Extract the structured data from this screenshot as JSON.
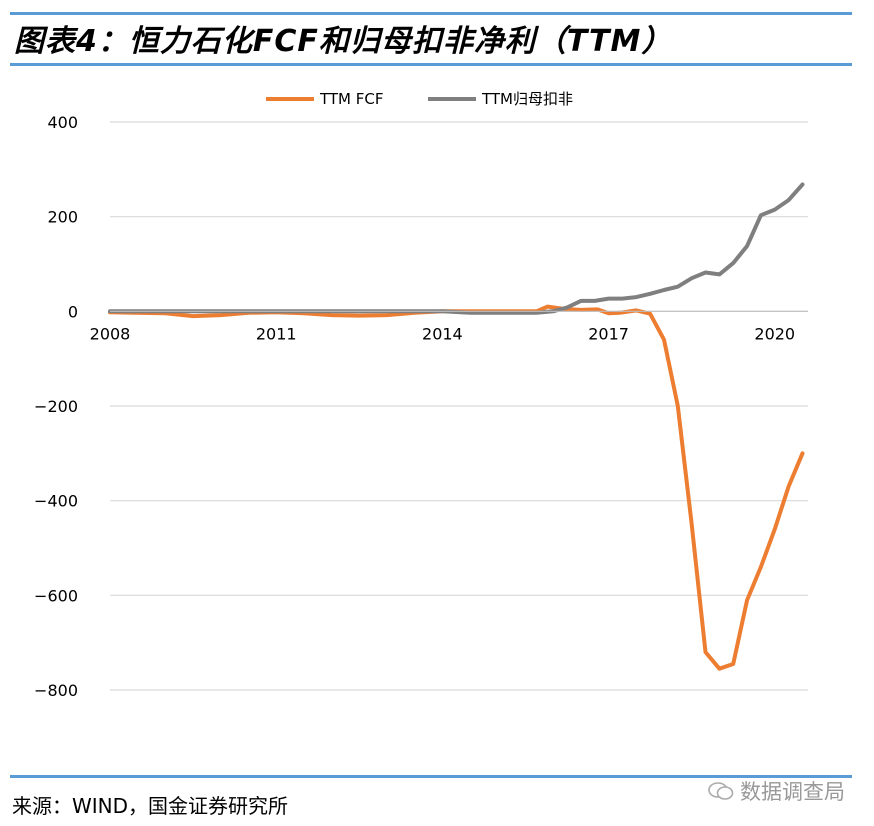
{
  "header": {
    "title": "图表4：恒力石化FCF和归母扣非净利（TTM）"
  },
  "footer": {
    "source": "来源：WIND，国金证券研究所",
    "watermark": "数据调查局"
  },
  "chart_data": {
    "type": "line",
    "ylim": [
      -800,
      400
    ],
    "yticks": [
      400,
      200,
      0,
      -200,
      -400,
      -600,
      -800
    ],
    "yticklabels": [
      "400",
      "200",
      "0",
      "−200",
      "−400",
      "−600",
      "−800"
    ],
    "xlim": [
      2008,
      2020.6
    ],
    "xticks": [
      2008,
      2011,
      2014,
      2017,
      2020
    ],
    "xticklabels": [
      "2008",
      "2011",
      "2014",
      "2017",
      "2020"
    ],
    "grid": true,
    "legend": "top",
    "colors": {
      "fcf": "#ed7d31",
      "profit": "#7f7f7f"
    },
    "series": [
      {
        "name": "TTM FCF",
        "color": "#ed7d31",
        "points": [
          [
            2008.0,
            -2
          ],
          [
            2009.0,
            -4
          ],
          [
            2009.5,
            -10
          ],
          [
            2010.0,
            -8
          ],
          [
            2010.5,
            -3
          ],
          [
            2011.0,
            -2
          ],
          [
            2011.5,
            -4
          ],
          [
            2012.0,
            -8
          ],
          [
            2012.5,
            -9
          ],
          [
            2013.0,
            -8
          ],
          [
            2013.5,
            -3
          ],
          [
            2014.0,
            0
          ],
          [
            2014.5,
            0
          ],
          [
            2015.0,
            0
          ],
          [
            2015.7,
            0
          ],
          [
            2015.9,
            10
          ],
          [
            2016.2,
            5
          ],
          [
            2016.5,
            3
          ],
          [
            2016.8,
            4
          ],
          [
            2017.0,
            -4
          ],
          [
            2017.2,
            -3
          ],
          [
            2017.5,
            2
          ],
          [
            2017.75,
            -5
          ],
          [
            2018.0,
            -60
          ],
          [
            2018.25,
            -200
          ],
          [
            2018.5,
            -450
          ],
          [
            2018.75,
            -720
          ],
          [
            2019.0,
            -755
          ],
          [
            2019.25,
            -745
          ],
          [
            2019.5,
            -610
          ],
          [
            2019.75,
            -540
          ],
          [
            2020.0,
            -460
          ],
          [
            2020.25,
            -370
          ],
          [
            2020.5,
            -300
          ]
        ]
      },
      {
        "name": "TTM归母扣非",
        "color": "#7f7f7f",
        "points": [
          [
            2008.0,
            0
          ],
          [
            2009.0,
            0
          ],
          [
            2010.0,
            0
          ],
          [
            2011.0,
            0
          ],
          [
            2012.0,
            0
          ],
          [
            2013.0,
            0
          ],
          [
            2014.0,
            0
          ],
          [
            2014.5,
            -3
          ],
          [
            2015.0,
            -3
          ],
          [
            2015.7,
            -3
          ],
          [
            2016.0,
            0
          ],
          [
            2016.25,
            8
          ],
          [
            2016.5,
            22
          ],
          [
            2016.75,
            22
          ],
          [
            2017.0,
            27
          ],
          [
            2017.25,
            27
          ],
          [
            2017.5,
            30
          ],
          [
            2017.75,
            37
          ],
          [
            2018.0,
            45
          ],
          [
            2018.25,
            52
          ],
          [
            2018.5,
            70
          ],
          [
            2018.75,
            82
          ],
          [
            2019.0,
            78
          ],
          [
            2019.25,
            102
          ],
          [
            2019.5,
            138
          ],
          [
            2019.75,
            203
          ],
          [
            2020.0,
            215
          ],
          [
            2020.25,
            235
          ],
          [
            2020.5,
            268
          ]
        ]
      }
    ]
  }
}
